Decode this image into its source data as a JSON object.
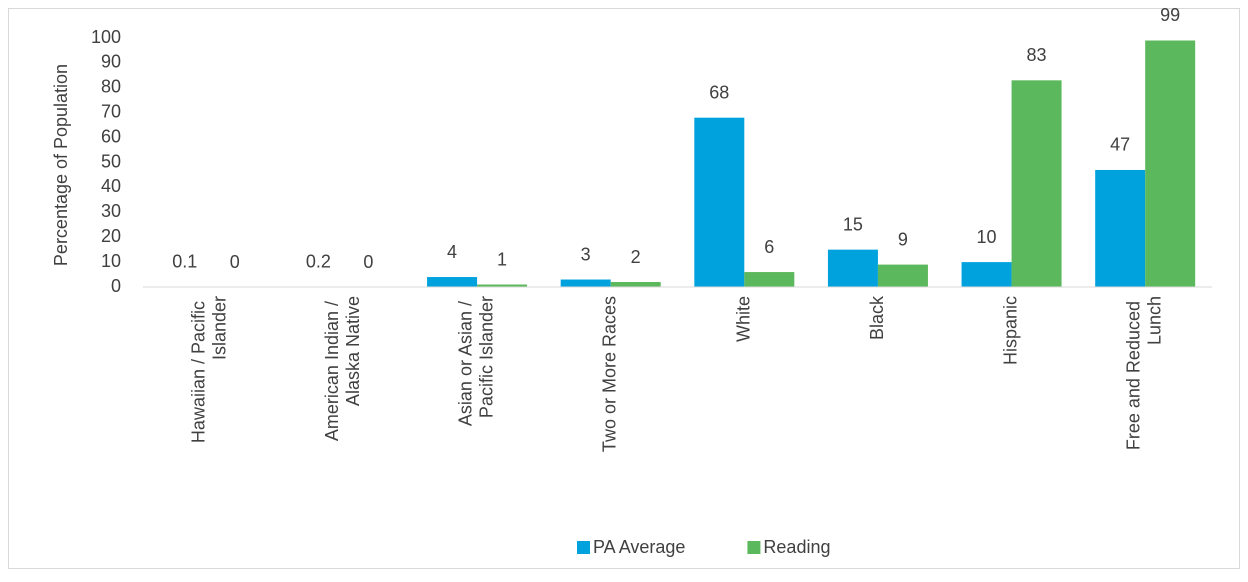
{
  "chart_data": {
    "type": "bar",
    "y_label": "Percentage of Population",
    "categories": [
      "Hawaiian / Pacific Islander",
      "American Indian / Alaska Native",
      "Asian or Asian / Pacific Islander",
      "Two or More Races",
      "White",
      "Black",
      "Hispanic",
      "Free and Reduced Lunch"
    ],
    "series": [
      {
        "name": "PA Average",
        "color": "#00a2de",
        "values": [
          0.1,
          0.2,
          4,
          3,
          68,
          15,
          10,
          47
        ]
      },
      {
        "name": "Reading",
        "color": "#5cb85c",
        "values": [
          0,
          0,
          1,
          2,
          6,
          9,
          83,
          99
        ]
      }
    ],
    "ylim": [
      0,
      100
    ],
    "yticks": [
      0,
      10,
      20,
      30,
      40,
      50,
      60,
      70,
      80,
      90,
      100
    ],
    "grid": false,
    "legend": "bottom"
  }
}
